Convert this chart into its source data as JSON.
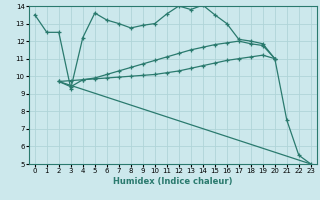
{
  "xlabel": "Humidex (Indice chaleur)",
  "bg_color": "#cce8ec",
  "grid_color": "#b0d4d8",
  "line_color": "#2a7a6e",
  "xlim": [
    -0.5,
    23.5
  ],
  "ylim": [
    5,
    14
  ],
  "yticks": [
    5,
    6,
    7,
    8,
    9,
    10,
    11,
    12,
    13,
    14
  ],
  "xticks": [
    0,
    1,
    2,
    3,
    4,
    5,
    6,
    7,
    8,
    9,
    10,
    11,
    12,
    13,
    14,
    15,
    16,
    17,
    18,
    19,
    20,
    21,
    22,
    23
  ],
  "line1_x": [
    0,
    1,
    2,
    3,
    4,
    5,
    6,
    7,
    8,
    9,
    10,
    11,
    12,
    13,
    14,
    15,
    16,
    17,
    18,
    19,
    20,
    21,
    22,
    23
  ],
  "line1_y": [
    13.5,
    12.5,
    12.5,
    9.3,
    12.2,
    13.6,
    13.2,
    13.0,
    12.75,
    12.9,
    13.0,
    13.55,
    14.0,
    13.8,
    14.05,
    13.5,
    13.0,
    12.1,
    12.0,
    11.85,
    11.0,
    7.5,
    5.5,
    5.0
  ],
  "line2_x": [
    2,
    3,
    4,
    5,
    6,
    7,
    8,
    9,
    10,
    11,
    12,
    13,
    14,
    15,
    16,
    17,
    18,
    19,
    20
  ],
  "line2_y": [
    9.7,
    9.75,
    9.8,
    9.85,
    9.9,
    9.95,
    10.0,
    10.05,
    10.1,
    10.2,
    10.3,
    10.45,
    10.6,
    10.75,
    10.9,
    11.0,
    11.1,
    11.2,
    11.0
  ],
  "line3_x": [
    2,
    3,
    4,
    5,
    6,
    7,
    8,
    9,
    10,
    11,
    12,
    13,
    14,
    15,
    16,
    17,
    18,
    19,
    20
  ],
  "line3_y": [
    9.7,
    9.4,
    9.8,
    9.9,
    10.1,
    10.3,
    10.5,
    10.7,
    10.9,
    11.1,
    11.3,
    11.5,
    11.65,
    11.8,
    11.9,
    12.0,
    11.85,
    11.75,
    11.0
  ],
  "line4_x": [
    2,
    23
  ],
  "line4_y": [
    9.7,
    5.0
  ],
  "tick_fontsize": 5.0,
  "xlabel_fontsize": 6.0
}
